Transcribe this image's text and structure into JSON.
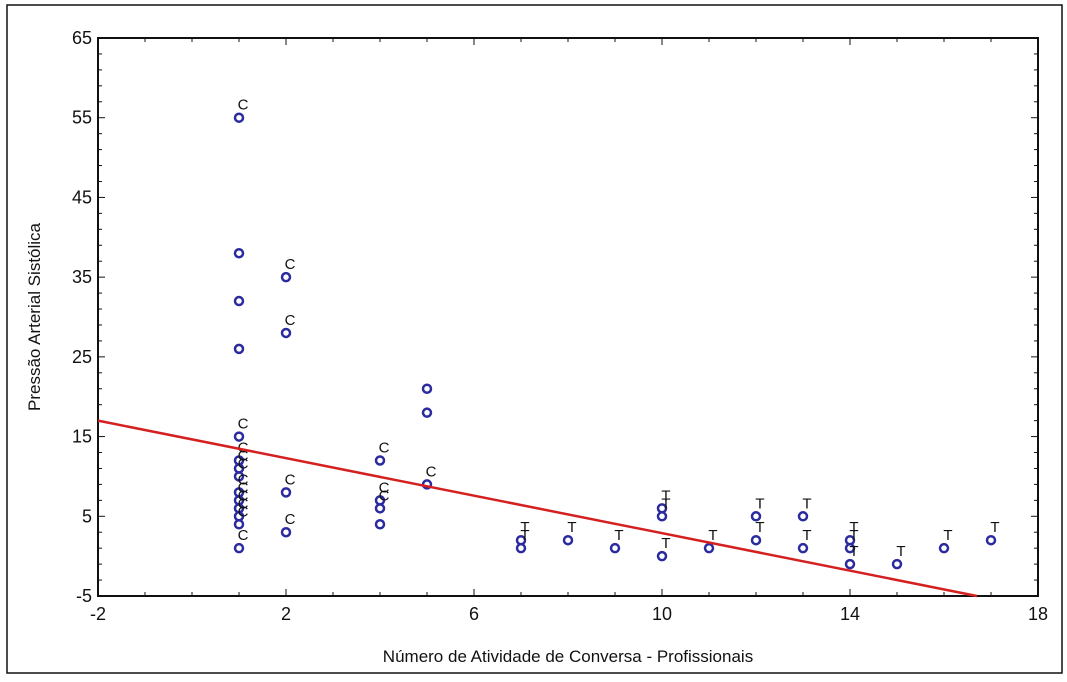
{
  "chart_data": {
    "type": "scatter",
    "title": "",
    "xlabel": "Número de Atividade de Conversa - Profissionais",
    "ylabel": "Pressão Arterial Sistólica",
    "xlim": [
      -2,
      18
    ],
    "ylim": [
      -5,
      65
    ],
    "x_major_ticks": [
      -2,
      2,
      6,
      10,
      14,
      18
    ],
    "y_major_ticks": [
      -5,
      5,
      15,
      25,
      35,
      45,
      55,
      65
    ],
    "grid": false,
    "legend": "none",
    "colors": {
      "points": "#2b2ba0",
      "fit_line": "#d42020",
      "frame": "#000000",
      "labels": "#111111"
    },
    "series": [
      {
        "marker": "circle",
        "points": [
          {
            "x": 1,
            "y": 55,
            "label": "C"
          },
          {
            "x": 1,
            "y": 38
          },
          {
            "x": 1,
            "y": 32
          },
          {
            "x": 1,
            "y": 26
          },
          {
            "x": 1,
            "y": 15,
            "label": "C"
          },
          {
            "x": 1,
            "y": 12,
            "label": "C"
          },
          {
            "x": 1,
            "y": 11,
            "label": "C"
          },
          {
            "x": 1,
            "y": 10,
            "label": "C"
          },
          {
            "x": 1,
            "y": 8,
            "label": "C"
          },
          {
            "x": 1,
            "y": 7,
            "label": "C"
          },
          {
            "x": 1,
            "y": 6,
            "label": "C"
          },
          {
            "x": 1,
            "y": 5,
            "label": "C"
          },
          {
            "x": 1,
            "y": 4,
            "label": "C"
          },
          {
            "x": 1,
            "y": 1,
            "label": "C"
          },
          {
            "x": 2,
            "y": 35,
            "label": "C"
          },
          {
            "x": 2,
            "y": 28,
            "label": "C"
          },
          {
            "x": 2,
            "y": 8,
            "label": "C"
          },
          {
            "x": 2,
            "y": 3,
            "label": "C"
          },
          {
            "x": 4,
            "y": 12,
            "label": "C"
          },
          {
            "x": 4,
            "y": 7,
            "label": "C"
          },
          {
            "x": 4,
            "y": 6,
            "label": "C"
          },
          {
            "x": 4,
            "y": 4
          },
          {
            "x": 5,
            "y": 21
          },
          {
            "x": 5,
            "y": 18
          },
          {
            "x": 5,
            "y": 9,
            "label": "C"
          },
          {
            "x": 7,
            "y": 2,
            "label": "T"
          },
          {
            "x": 7,
            "y": 1,
            "label": "T"
          },
          {
            "x": 8,
            "y": 2,
            "label": "T"
          },
          {
            "x": 9,
            "y": 1,
            "label": "T"
          },
          {
            "x": 10,
            "y": 6,
            "label": "T"
          },
          {
            "x": 10,
            "y": 5,
            "label": "T"
          },
          {
            "x": 10,
            "y": 0,
            "label": "T"
          },
          {
            "x": 11,
            "y": 1,
            "label": "T"
          },
          {
            "x": 12,
            "y": 5,
            "label": "T"
          },
          {
            "x": 12,
            "y": 2,
            "label": "T"
          },
          {
            "x": 13,
            "y": 5,
            "label": "T"
          },
          {
            "x": 13,
            "y": 1,
            "label": "T"
          },
          {
            "x": 14,
            "y": 2,
            "label": "T"
          },
          {
            "x": 14,
            "y": 1,
            "label": "T"
          },
          {
            "x": 14,
            "y": -1,
            "label": "T"
          },
          {
            "x": 15,
            "y": -1,
            "label": "T"
          },
          {
            "x": 16,
            "y": 1,
            "label": "T"
          },
          {
            "x": 17,
            "y": 2,
            "label": "T"
          }
        ]
      }
    ],
    "fit_line": {
      "x": [
        -2,
        16.7
      ],
      "y": [
        17,
        -5
      ]
    }
  }
}
